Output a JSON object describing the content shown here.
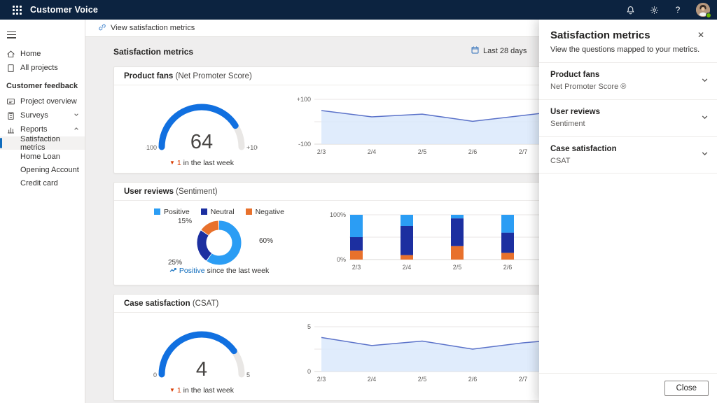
{
  "topbar": {
    "app_title": "Customer Voice",
    "icons": [
      "waffle-icon",
      "bell-icon",
      "gear-icon",
      "help-icon",
      "avatar"
    ]
  },
  "sidebar": {
    "items": [
      {
        "label": "Home"
      },
      {
        "label": "All projects"
      }
    ],
    "section_label": "Customer feedback",
    "section_items": [
      {
        "label": "Project overview",
        "chevron": ""
      },
      {
        "label": "Surveys",
        "chevron": "down"
      },
      {
        "label": "Reports",
        "chevron": "up"
      }
    ],
    "report_items": [
      {
        "label": "Satisfaction metrics",
        "selected": true
      },
      {
        "label": "Home Loan",
        "selected": false
      },
      {
        "label": "Opening Account",
        "selected": false
      },
      {
        "label": "Credit card",
        "selected": false
      }
    ]
  },
  "command_bar": {
    "action_label": "View satisfaction metrics"
  },
  "main": {
    "title": "Satisfaction metrics",
    "date_filter": "Last 28 days",
    "cards": [
      {
        "title": "Product fans",
        "subtitle": "(Net Promoter Score)",
        "gauge": {
          "min": "-100",
          "max": "+100",
          "value": "64",
          "fraction": 0.82
        },
        "trend": {
          "direction": "down",
          "value": "1",
          "text": "in the last week"
        }
      },
      {
        "title": "User reviews",
        "subtitle": "(Sentiment)",
        "legend": [
          {
            "label": "Positive"
          },
          {
            "label": "Neutral"
          },
          {
            "label": "Negative"
          }
        ],
        "donut": {
          "segments": [
            {
              "name": "Positive",
              "pct": 60,
              "label": "60%"
            },
            {
              "name": "Neutral",
              "pct": 25,
              "label": "25%"
            },
            {
              "name": "Negative",
              "pct": 15,
              "label": "15%"
            }
          ]
        },
        "trend": {
          "direction": "up",
          "highlight": "Positive",
          "text": "since the last week"
        }
      },
      {
        "title": "Case satisfaction",
        "subtitle": "(CSAT)",
        "gauge": {
          "min": "0",
          "max": "5",
          "value": "4",
          "fraction": 0.8
        },
        "trend": {
          "direction": "down",
          "value": "1",
          "text": "in the last week"
        }
      }
    ]
  },
  "panel": {
    "title": "Satisfaction metrics",
    "subtitle": "View the questions mapped to your metrics.",
    "sections": [
      {
        "title": "Product fans",
        "subtitle": "Net Promoter Score ®"
      },
      {
        "title": "User reviews",
        "subtitle": "Sentiment"
      },
      {
        "title": "Case satisfaction",
        "subtitle": "CSAT"
      }
    ],
    "close_button": "Close"
  },
  "chart_data": [
    {
      "type": "area",
      "title": "Product fans (Net Promoter Score) daily trend",
      "x": [
        "2/3",
        "2/4",
        "2/5",
        "2/6",
        "2/7"
      ],
      "values": [
        50,
        22,
        34,
        2,
        28
      ],
      "trailing_value": 55,
      "ylim": [
        -100,
        100
      ],
      "ytick_labels": [
        "+100",
        "-100"
      ],
      "grid": true
    },
    {
      "type": "stacked-bar",
      "title": "User reviews (Sentiment) daily distribution",
      "x": [
        "2/3",
        "2/4",
        "2/5",
        "2/6",
        "2/7"
      ],
      "series": [
        {
          "name": "Negative",
          "values": [
            20,
            10,
            30,
            15,
            3
          ],
          "trailing": 5
        },
        {
          "name": "Neutral",
          "values": [
            30,
            65,
            62,
            45,
            27
          ],
          "trailing": 25
        },
        {
          "name": "Positive",
          "values": [
            50,
            25,
            8,
            40,
            70
          ],
          "trailing": 70
        }
      ],
      "ylim": [
        0,
        100
      ],
      "ytick_labels": [
        "100%",
        "0%"
      ],
      "legend_position": "left-above-donut",
      "grid": true
    },
    {
      "type": "area",
      "title": "Case satisfaction (CSAT) daily trend",
      "x": [
        "2/3",
        "2/4",
        "2/5",
        "2/6",
        "2/7"
      ],
      "values": [
        3.8,
        2.9,
        3.4,
        2.5,
        3.2
      ],
      "trailing_value": 3.7,
      "ylim": [
        0,
        5
      ],
      "ytick_labels": [
        "5",
        "0"
      ],
      "grid": true
    }
  ],
  "colors": {
    "accent": "#0f6cbd",
    "topbar": "#0c2340",
    "gauge_fill": "#1170e0",
    "gauge_track": "#e9e7e5",
    "positive": "#2b9df4",
    "neutral": "#1c2fa0",
    "negative": "#e8712c",
    "line": "#5b72c9",
    "area_fill": "#dbe9fb",
    "trend_down": "#d83b01",
    "presence_online": "#6bb700"
  }
}
